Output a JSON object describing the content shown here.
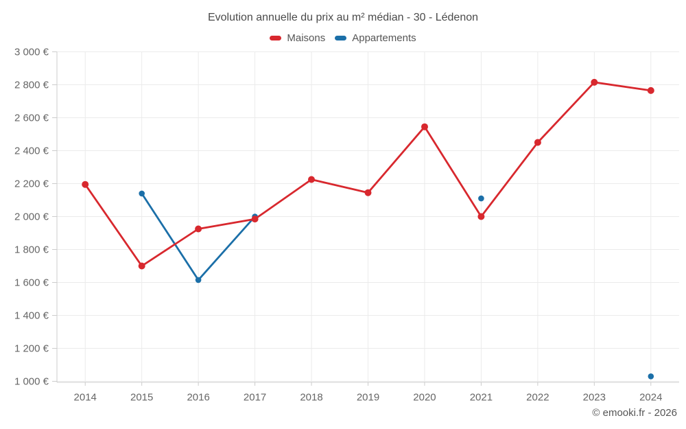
{
  "chart_data": {
    "type": "line",
    "title": "Evolution annuelle du prix au m² médian - 30 - Lédenon",
    "categories": [
      "2014",
      "2015",
      "2016",
      "2017",
      "2018",
      "2019",
      "2020",
      "2021",
      "2022",
      "2023",
      "2024"
    ],
    "series": [
      {
        "name": "Maisons",
        "color": "#d8282e",
        "values": [
          2195,
          1700,
          1925,
          1985,
          2225,
          2145,
          2545,
          2000,
          2450,
          2815,
          2765
        ]
      },
      {
        "name": "Appartements",
        "color": "#1b6fa8",
        "values": [
          null,
          2140,
          1615,
          2000,
          null,
          null,
          null,
          2110,
          null,
          null,
          1030
        ]
      }
    ],
    "ylim": [
      1000,
      3000
    ],
    "ytick_step": 200,
    "y_suffix": " €",
    "grid": true,
    "legend_position": "top",
    "colors": {
      "gridline": "#ebebeb",
      "axis": "#cccccc",
      "tick_label": "#666666",
      "title": "#4a4a4a"
    }
  },
  "footer": {
    "credits": "© emooki.fr - 2026"
  }
}
